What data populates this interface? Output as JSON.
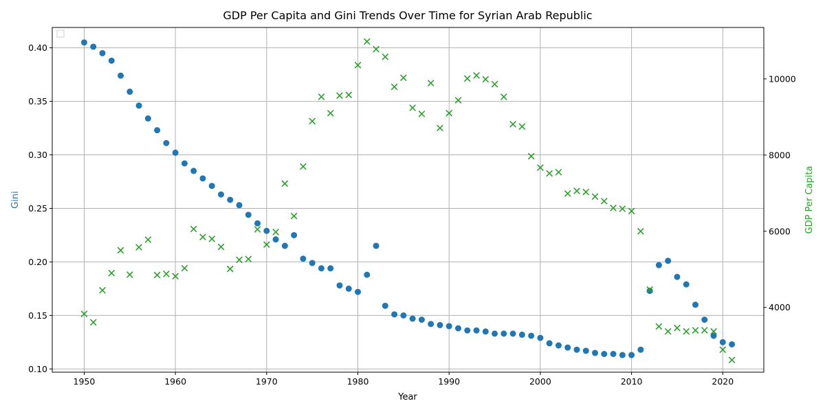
{
  "chart_data": {
    "type": "scatter",
    "title": "GDP Per Capita and Gini Trends Over Time for Syrian Arab Republic",
    "xlabel": "Year",
    "ylabel_left": "Gini",
    "ylabel_right": "GDP Per Capita",
    "xlim": [
      1946.5,
      2024.5
    ],
    "ylim_left": [
      0.097,
      0.419
    ],
    "ylim_right": [
      2300,
      11350
    ],
    "x_ticks": [
      "1950",
      "1960",
      "1970",
      "1980",
      "1990",
      "2000",
      "2010",
      "2020"
    ],
    "y_left_ticks": [
      "0.10",
      "0.15",
      "0.20",
      "0.25",
      "0.30",
      "0.35",
      "0.40"
    ],
    "y_right_ticks": [
      "4000",
      "6000",
      "8000",
      "10000"
    ],
    "grid": true,
    "legend": "top-left (empty)",
    "colors": {
      "gini": "#1f77b4",
      "gdp": "#2ca02c"
    },
    "series": [
      {
        "axis": "left",
        "marker": "circle",
        "x": [
          1950,
          1951,
          1952,
          1953,
          1954,
          1955,
          1956,
          1957,
          1958,
          1959,
          1960,
          1961,
          1962,
          1963,
          1964,
          1965,
          1966,
          1967,
          1968,
          1969,
          1970,
          1971,
          1972,
          1973,
          1974,
          1975,
          1976,
          1977,
          1978,
          1979,
          1980,
          1981,
          1982,
          1983,
          1984,
          1985,
          1986,
          1987,
          1988,
          1989,
          1990,
          1991,
          1992,
          1993,
          1994,
          1995,
          1996,
          1997,
          1998,
          1999,
          2000,
          2001,
          2002,
          2003,
          2004,
          2005,
          2006,
          2007,
          2008,
          2009,
          2010,
          2011,
          2012,
          2013,
          2014,
          2015,
          2016,
          2017,
          2018,
          2019,
          2020,
          2021
        ],
        "values": [
          0.405,
          0.401,
          0.395,
          0.388,
          0.374,
          0.359,
          0.346,
          0.334,
          0.323,
          0.311,
          0.302,
          0.292,
          0.285,
          0.278,
          0.271,
          0.263,
          0.258,
          0.253,
          0.244,
          0.236,
          0.229,
          0.221,
          0.215,
          0.225,
          0.203,
          0.199,
          0.194,
          0.194,
          0.178,
          0.175,
          0.172,
          0.188,
          0.215,
          0.159,
          0.151,
          0.15,
          0.147,
          0.146,
          0.142,
          0.141,
          0.14,
          0.138,
          0.136,
          0.136,
          0.135,
          0.133,
          0.133,
          0.133,
          0.132,
          0.131,
          0.129,
          0.124,
          0.122,
          0.12,
          0.118,
          0.117,
          0.115,
          0.114,
          0.114,
          0.113,
          0.113,
          0.118,
          0.173,
          0.197,
          0.201,
          0.186,
          0.179,
          0.16,
          0.146,
          0.131,
          0.125,
          0.123
        ]
      },
      {
        "axis": "right",
        "marker": "x",
        "x": [
          1950,
          1951,
          1952,
          1953,
          1954,
          1955,
          1956,
          1957,
          1958,
          1959,
          1960,
          1961,
          1962,
          1963,
          1964,
          1965,
          1966,
          1967,
          1968,
          1969,
          1970,
          1971,
          1972,
          1973,
          1974,
          1975,
          1976,
          1977,
          1978,
          1979,
          1980,
          1981,
          1982,
          1983,
          1984,
          1985,
          1986,
          1987,
          1988,
          1989,
          1990,
          1991,
          1992,
          1993,
          1994,
          1995,
          1996,
          1997,
          1998,
          1999,
          2000,
          2001,
          2002,
          2003,
          2004,
          2005,
          2006,
          2007,
          2008,
          2009,
          2010,
          2011,
          2012,
          2013,
          2014,
          2015,
          2016,
          2017,
          2018,
          2019,
          2020,
          2021
        ],
        "values": [
          3830,
          3610,
          4450,
          4900,
          5500,
          4860,
          5580,
          5780,
          4850,
          4880,
          4820,
          5030,
          6060,
          5850,
          5800,
          5590,
          5010,
          5250,
          5270,
          6050,
          5650,
          5980,
          7250,
          6400,
          7700,
          8890,
          9530,
          9100,
          9560,
          9580,
          10360,
          10980,
          10780,
          10580,
          9790,
          10030,
          9240,
          9080,
          9890,
          8710,
          9100,
          9440,
          10010,
          10090,
          9990,
          9860,
          9530,
          8810,
          8750,
          7970,
          7670,
          7520,
          7550,
          6990,
          7060,
          7030,
          6910,
          6790,
          6610,
          6590,
          6530,
          6000,
          4470,
          3500,
          3370,
          3460,
          3370,
          3400,
          3400,
          3370,
          2890,
          2620
        ]
      }
    ]
  }
}
